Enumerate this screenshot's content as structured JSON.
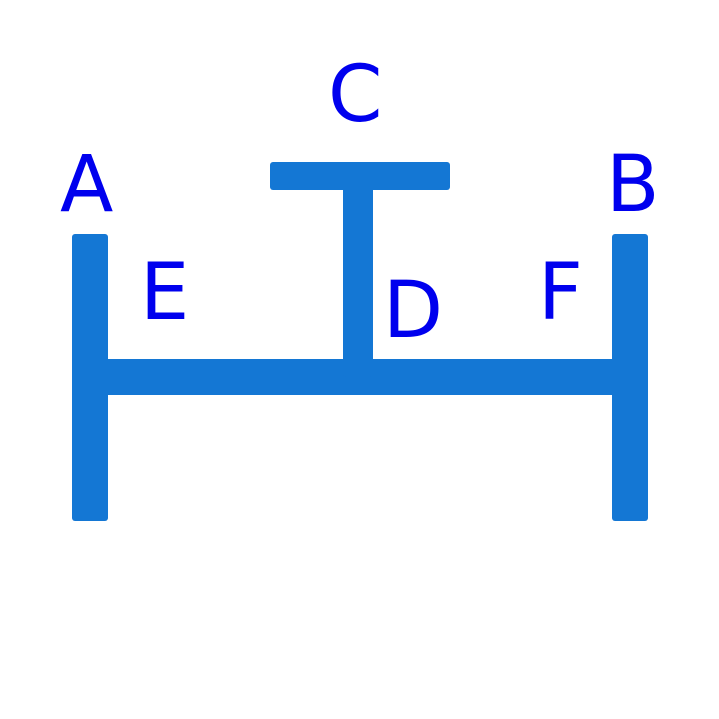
{
  "diagram": {
    "colors": {
      "bar": "#1477D4",
      "label": "#0000EE"
    },
    "labels": {
      "a": "A",
      "b": "B",
      "c": "C",
      "d": "D",
      "e": "E",
      "f": "F"
    }
  }
}
